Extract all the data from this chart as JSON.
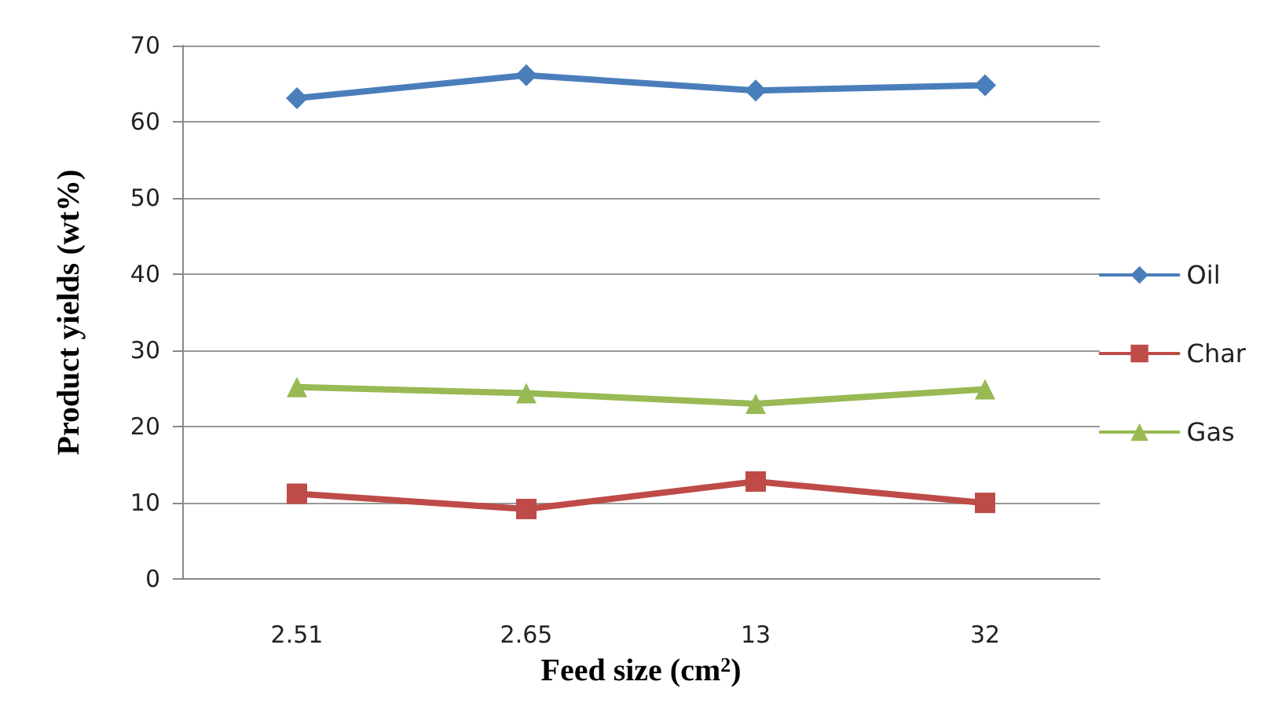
{
  "chart_data": {
    "type": "line",
    "xlabel": "Feed size (cm$^{2}$)",
    "ylabel": "Product yields (wt%)",
    "categories": [
      "2.51",
      "2.65",
      "13",
      "32"
    ],
    "series": [
      {
        "name": "Oil",
        "color": "#4a7ebb",
        "marker": "diamond",
        "values": [
          63.1,
          66.1,
          64.1,
          64.8
        ]
      },
      {
        "name": "Char",
        "color": "#be4b48",
        "marker": "square",
        "values": [
          11.2,
          9.2,
          12.8,
          10.0
        ]
      },
      {
        "name": "Gas",
        "color": "#98b954",
        "marker": "triangle",
        "values": [
          25.2,
          24.4,
          23.0,
          24.9
        ]
      }
    ],
    "ylim": [
      0,
      70
    ],
    "yticks": [
      0,
      10,
      20,
      30,
      40,
      50,
      60,
      70
    ],
    "grid": "y",
    "legend": "right",
    "line_style": "solid"
  }
}
